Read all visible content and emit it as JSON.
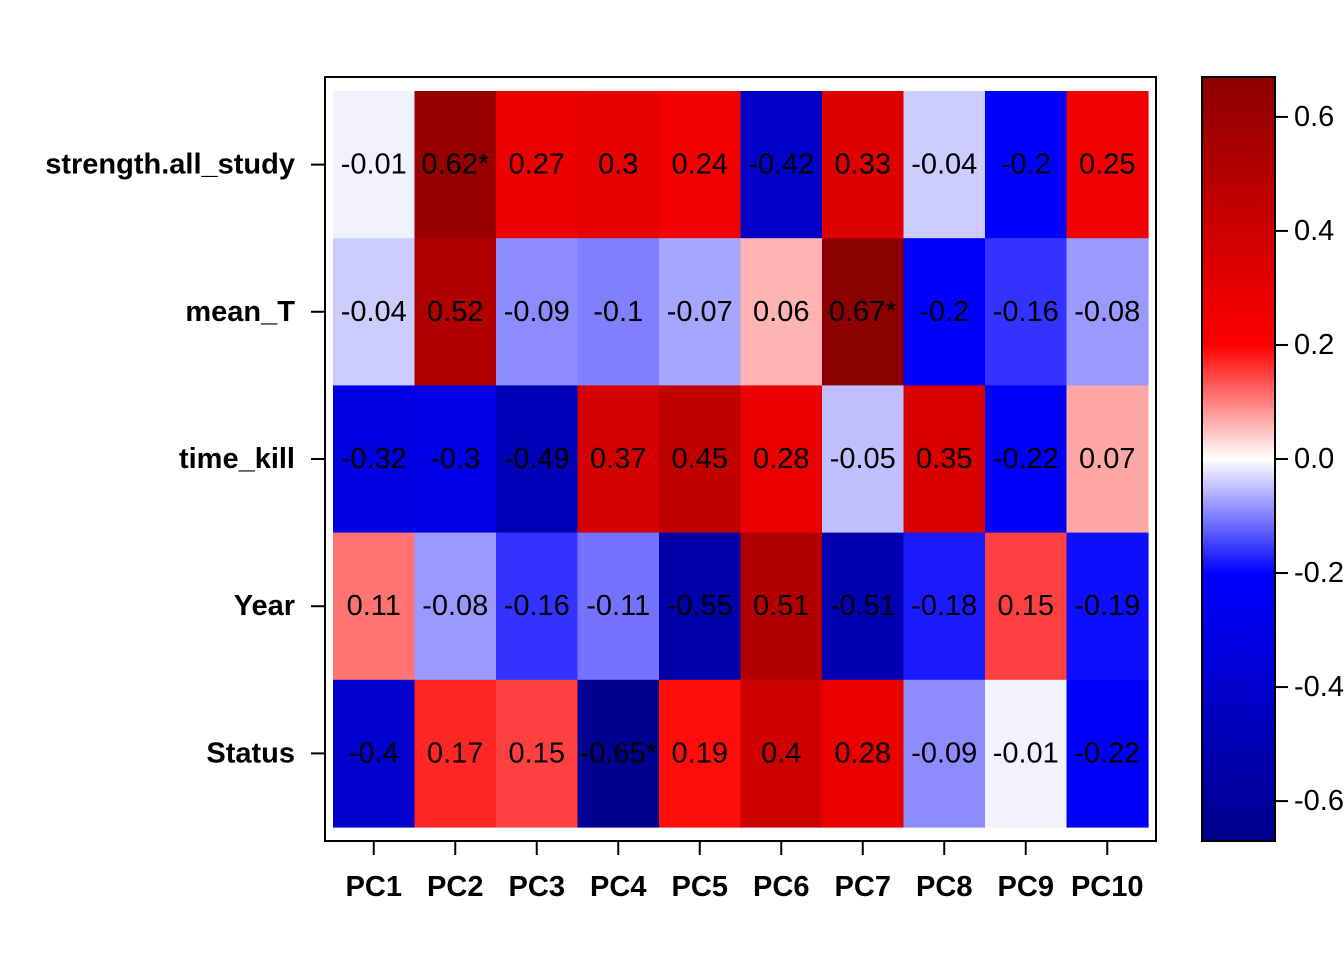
{
  "chart_data": {
    "type": "heatmap",
    "rows": [
      "strength.all_study",
      "mean_T",
      "time_kill",
      "Year",
      "Status"
    ],
    "columns": [
      "PC1",
      "PC2",
      "PC3",
      "PC4",
      "PC5",
      "PC6",
      "PC7",
      "PC8",
      "PC9",
      "PC10"
    ],
    "values": [
      [
        -0.01,
        0.62,
        0.27,
        0.3,
        0.24,
        -0.42,
        0.33,
        -0.04,
        -0.2,
        0.25
      ],
      [
        -0.04,
        0.52,
        -0.09,
        -0.1,
        -0.07,
        0.06,
        0.67,
        -0.2,
        -0.16,
        -0.08
      ],
      [
        -0.32,
        -0.3,
        -0.49,
        0.37,
        0.45,
        0.28,
        -0.05,
        0.35,
        -0.22,
        0.07
      ],
      [
        0.11,
        -0.08,
        -0.16,
        -0.11,
        -0.55,
        0.51,
        -0.51,
        -0.18,
        0.15,
        -0.19
      ],
      [
        -0.4,
        0.17,
        0.15,
        -0.65,
        0.19,
        0.4,
        0.28,
        -0.09,
        -0.01,
        -0.22
      ]
    ],
    "cell_labels": [
      [
        "-0.01",
        "0.62*",
        "0.27",
        "0.3",
        "0.24",
        "-0.42",
        "0.33",
        "-0.04",
        "-0.2",
        "0.25"
      ],
      [
        "-0.04",
        "0.52",
        "-0.09",
        "-0.1",
        "-0.07",
        "0.06",
        "0.67*",
        "-0.2",
        "-0.16",
        "-0.08"
      ],
      [
        "-0.32",
        "-0.3",
        "-0.49",
        "0.37",
        "0.45",
        "0.28",
        "-0.05",
        "0.35",
        "-0.22",
        "0.07"
      ],
      [
        "0.11",
        "-0.08",
        "-0.16",
        "-0.11",
        "-0.55",
        "0.51",
        "-0.51",
        "-0.18",
        "0.15",
        "-0.19"
      ],
      [
        "-0.4",
        "0.17",
        "0.15",
        "-0.65*",
        "0.19",
        "0.4",
        "0.28",
        "-0.09",
        "-0.01",
        "-0.22"
      ]
    ],
    "colorbar": {
      "range": [
        -0.67,
        0.67
      ],
      "ticks": [
        0.6,
        0.4,
        0.2,
        0.0,
        -0.2,
        -0.4,
        -0.6
      ],
      "tick_labels": [
        "0.6",
        "0.4",
        "0.2",
        "0.0",
        "-0.2",
        "-0.4",
        "-0.6"
      ],
      "colors": {
        "low": "#00008B",
        "mid_low": "#0000FF",
        "zero": "#FFFFFF",
        "mid_high": "#FF0000",
        "high": "#8B0000"
      }
    },
    "title": "",
    "xlabel": "",
    "ylabel": ""
  }
}
